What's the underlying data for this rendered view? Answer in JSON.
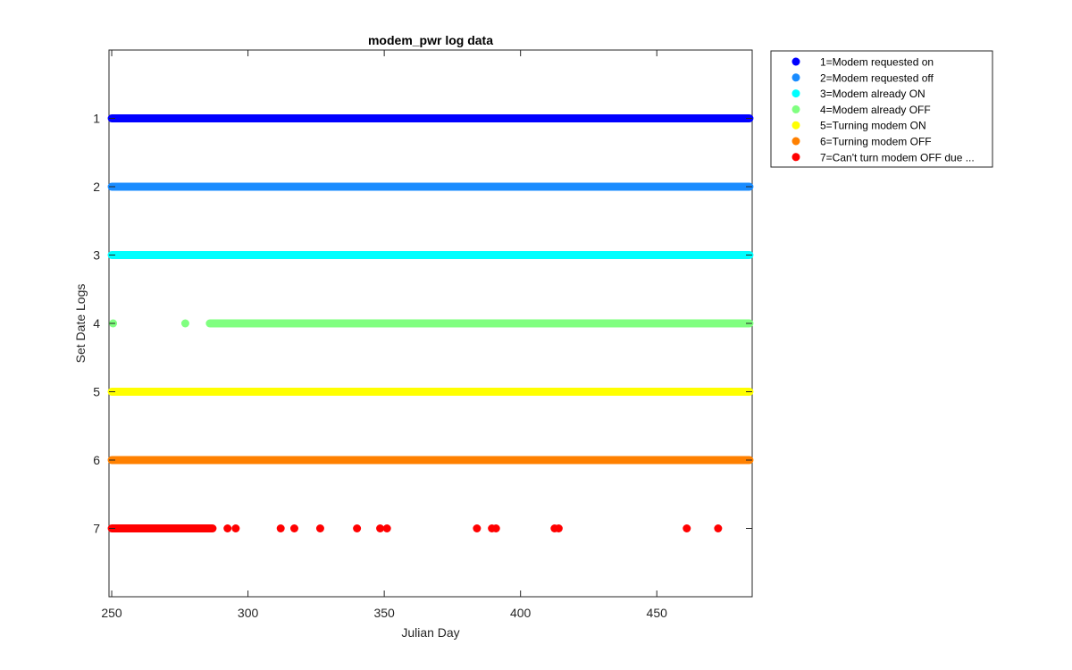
{
  "chart_data": {
    "type": "scatter",
    "title": "modem_pwr log data",
    "xlabel": "Julian Day",
    "ylabel": "Set Date Logs",
    "xlim": [
      249,
      485
    ],
    "ylim": [
      0,
      8
    ],
    "y_reversed": true,
    "grid": false,
    "legend_position": "outside-top-right",
    "x_ticks": [
      250,
      300,
      350,
      400,
      450
    ],
    "y_ticks": [
      1,
      2,
      3,
      4,
      5,
      6,
      7
    ],
    "series": [
      {
        "name": "1=Modem requested on",
        "color": "#0000ff",
        "y": 1,
        "x_ranges": [
          [
            250,
            484
          ]
        ],
        "x": []
      },
      {
        "name": "2=Modem requested off",
        "color": "#1a8cff",
        "y": 2,
        "x_ranges": [
          [
            250,
            484
          ]
        ],
        "x": []
      },
      {
        "name": "3=Modem already ON",
        "color": "#00ffff",
        "y": 3,
        "x_ranges": [
          [
            250,
            484
          ]
        ],
        "x": []
      },
      {
        "name": "4=Modem already OFF",
        "color": "#80ff80",
        "y": 4,
        "x_ranges": [
          [
            286,
            484
          ]
        ],
        "x": [
          250.5,
          277
        ]
      },
      {
        "name": "5=Turning modem ON",
        "color": "#ffff00",
        "y": 5,
        "x_ranges": [
          [
            250,
            484
          ]
        ],
        "x": []
      },
      {
        "name": "6=Turning modem OFF",
        "color": "#ff8000",
        "y": 6,
        "x_ranges": [
          [
            250,
            484
          ]
        ],
        "x": []
      },
      {
        "name": "7=Can't turn modem OFF due  ...",
        "color": "#ff0000",
        "y": 7,
        "x_ranges": [
          [
            250,
            287
          ]
        ],
        "x": [
          292.5,
          295.5,
          312,
          317,
          326.5,
          340,
          348.5,
          351,
          384,
          389.5,
          391,
          412.5,
          414,
          461,
          472.5
        ]
      }
    ]
  }
}
